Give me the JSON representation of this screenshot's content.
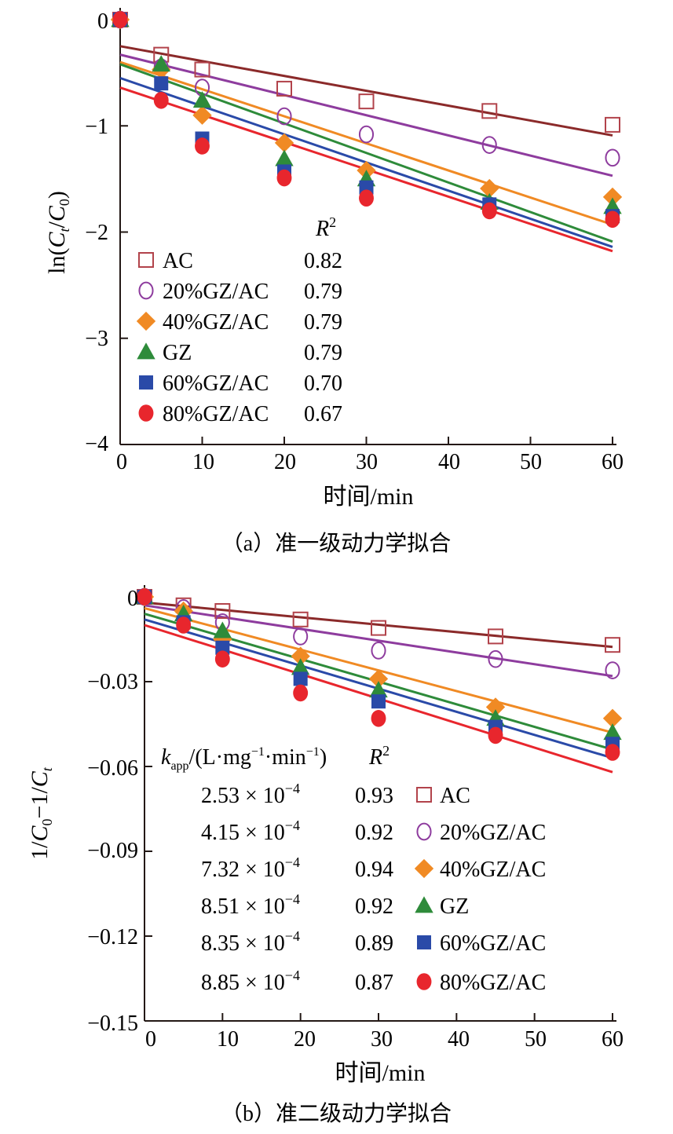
{
  "charts": [
    {
      "id": "a",
      "caption": "（a）准一级动力学拟合",
      "xlabel": "时间/min",
      "ylabel": "ln(Ct/C0)",
      "xticks": [
        "0",
        "10",
        "20",
        "30",
        "40",
        "50",
        "60"
      ],
      "yticks": [
        "0",
        "−1",
        "−2",
        "−3",
        "−4"
      ],
      "legend_header": "R²",
      "legend": [
        {
          "name": "AC",
          "r2": "0.82"
        },
        {
          "name": "20%GZ/AC",
          "r2": "0.79"
        },
        {
          "name": "40%GZ/AC",
          "r2": "0.79"
        },
        {
          "name": "GZ",
          "r2": "0.79"
        },
        {
          "name": "60%GZ/AC",
          "r2": "0.70"
        },
        {
          "name": "80%GZ/AC",
          "r2": "0.67"
        }
      ]
    },
    {
      "id": "b",
      "caption": "（b）准二级动力学拟合",
      "xlabel": "时间/min",
      "ylabel": "1/C0−1/Ct",
      "xticks": [
        "0",
        "10",
        "20",
        "30",
        "40",
        "50",
        "60"
      ],
      "yticks": [
        "0",
        "−0.03",
        "−0.06",
        "−0.09",
        "−0.12",
        "−0.15"
      ],
      "legend_header_k": "kapp/(L·mg−1·min−1)",
      "legend_header_r2": "R²",
      "legend": [
        {
          "k": "2.53 × 10−4",
          "r2": "0.93",
          "name": "AC"
        },
        {
          "k": "4.15 × 10−4",
          "r2": "0.92",
          "name": "20%GZ/AC"
        },
        {
          "k": "7.32 × 10−4",
          "r2": "0.94",
          "name": "40%GZ/AC"
        },
        {
          "k": "8.51 × 10−4",
          "r2": "0.92",
          "name": "GZ"
        },
        {
          "k": "8.35 × 10−4",
          "r2": "0.89",
          "name": "60%GZ/AC"
        },
        {
          "k": "8.85 × 10−4",
          "r2": "0.87",
          "name": "80%GZ/AC"
        }
      ]
    }
  ],
  "colors": {
    "AC": "#b2434b",
    "20%GZ/AC": "#8e3c9e",
    "40%GZ/AC": "#f08a24",
    "GZ": "#2e8b3a",
    "60%GZ/AC": "#2a4aa8",
    "80%GZ/AC": "#e8262d",
    "fit_AC": "#8b2a2a"
  },
  "chart_data": [
    {
      "type": "scatter",
      "title": "（a）准一级动力学拟合",
      "xlabel": "时间/min",
      "ylabel": "ln(Ct/C0)",
      "xlim": [
        0,
        60
      ],
      "ylim": [
        -4,
        0
      ],
      "x": [
        0,
        5,
        10,
        20,
        30,
        45,
        60
      ],
      "series": [
        {
          "name": "AC",
          "marker": "open-square",
          "values": [
            0,
            -0.33,
            -0.47,
            -0.65,
            -0.77,
            -0.86,
            -0.99
          ],
          "fit": [
            -0.25,
            -1.09
          ]
        },
        {
          "name": "20%GZ/AC",
          "marker": "open-circle",
          "values": [
            0,
            -0.45,
            -0.64,
            -0.91,
            -1.08,
            -1.18,
            -1.3
          ],
          "fit": [
            -0.33,
            -1.47
          ]
        },
        {
          "name": "40%GZ/AC",
          "marker": "diamond",
          "values": [
            0,
            -0.47,
            -0.9,
            -1.16,
            -1.42,
            -1.59,
            -1.67
          ],
          "fit": [
            -0.4,
            -1.93
          ]
        },
        {
          "name": "GZ",
          "marker": "triangle",
          "values": [
            0,
            -0.42,
            -0.76,
            -1.31,
            -1.5,
            -1.72,
            -1.76
          ],
          "fit": [
            -0.42,
            -2.09
          ]
        },
        {
          "name": "60%GZ/AC",
          "marker": "square",
          "values": [
            0,
            -0.6,
            -1.12,
            -1.43,
            -1.58,
            -1.74,
            -1.85
          ],
          "fit": [
            -0.55,
            -2.14
          ]
        },
        {
          "name": "80%GZ/AC",
          "marker": "circle",
          "values": [
            0,
            -0.76,
            -1.19,
            -1.49,
            -1.68,
            -1.8,
            -1.88
          ],
          "fit": [
            -0.64,
            -2.18
          ]
        }
      ]
    },
    {
      "type": "scatter",
      "title": "（b）准二级动力学拟合",
      "xlabel": "时间/min",
      "ylabel": "1/C0−1/Ct",
      "xlim": [
        0,
        60
      ],
      "ylim": [
        -0.15,
        0
      ],
      "x": [
        0,
        5,
        10,
        20,
        30,
        45,
        60
      ],
      "series": [
        {
          "name": "AC",
          "marker": "open-square",
          "values": [
            0,
            -0.003,
            -0.005,
            -0.008,
            -0.011,
            -0.014,
            -0.017
          ],
          "fit": [
            -0.002,
            -0.0177
          ]
        },
        {
          "name": "20%GZ/AC",
          "marker": "open-circle",
          "values": [
            0,
            -0.004,
            -0.009,
            -0.014,
            -0.019,
            -0.022,
            -0.026
          ],
          "fit": [
            -0.003,
            -0.028
          ]
        },
        {
          "name": "40%GZ/AC",
          "marker": "diamond",
          "values": [
            0,
            -0.005,
            -0.015,
            -0.021,
            -0.029,
            -0.039,
            -0.043
          ],
          "fit": [
            -0.004,
            -0.048
          ]
        },
        {
          "name": "GZ",
          "marker": "triangle",
          "values": [
            0,
            -0.006,
            -0.012,
            -0.025,
            -0.033,
            -0.043,
            -0.048
          ],
          "fit": [
            -0.006,
            -0.054
          ]
        },
        {
          "name": "60%GZ/AC",
          "marker": "square",
          "values": [
            0,
            -0.009,
            -0.018,
            -0.029,
            -0.037,
            -0.046,
            -0.052
          ],
          "fit": [
            -0.008,
            -0.057
          ]
        },
        {
          "name": "80%GZ/AC",
          "marker": "circle",
          "values": [
            0,
            -0.01,
            -0.022,
            -0.034,
            -0.043,
            -0.049,
            -0.055
          ],
          "fit": [
            -0.01,
            -0.062
          ]
        }
      ]
    }
  ]
}
